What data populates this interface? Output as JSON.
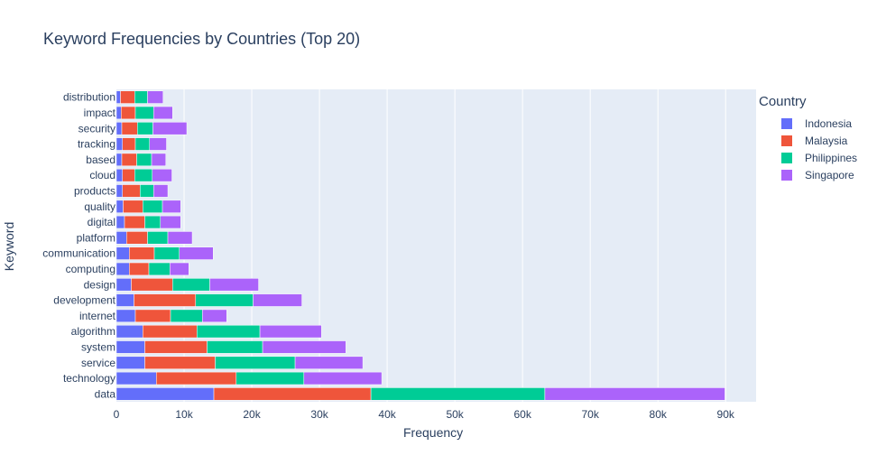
{
  "chart_data": {
    "type": "bar",
    "orientation": "horizontal",
    "barmode": "stack",
    "title": "Keyword Frequencies by Countries (Top 20)",
    "xlabel": "Frequency",
    "ylabel": "Keyword",
    "xlim": [
      0,
      94500
    ],
    "xticks": [
      0,
      10000,
      20000,
      30000,
      40000,
      50000,
      60000,
      70000,
      80000,
      90000
    ],
    "xtick_labels": [
      "0",
      "10k",
      "20k",
      "30k",
      "40k",
      "50k",
      "60k",
      "70k",
      "80k",
      "90k"
    ],
    "legend_title": "Country",
    "legend_position": "right",
    "categories": [
      "data",
      "technology",
      "service",
      "system",
      "algorithm",
      "internet",
      "development",
      "design",
      "computing",
      "communication",
      "platform",
      "digital",
      "quality",
      "products",
      "cloud",
      "based",
      "tracking",
      "security",
      "impact",
      "distribution"
    ],
    "series": [
      {
        "name": "Indonesia",
        "color": "#636efa",
        "values": [
          14400,
          5900,
          4200,
          4200,
          3900,
          2800,
          2600,
          2200,
          1900,
          1900,
          1500,
          1200,
          1000,
          900,
          900,
          800,
          900,
          800,
          700,
          600
        ]
      },
      {
        "name": "Malaysia",
        "color": "#ef553b",
        "values": [
          23200,
          11800,
          10400,
          9200,
          8000,
          5200,
          9100,
          6100,
          2900,
          3700,
          3100,
          3000,
          2900,
          2600,
          1800,
          2200,
          1900,
          2300,
          2100,
          2100
        ]
      },
      {
        "name": "Philippines",
        "color": "#00cc96",
        "values": [
          25700,
          10000,
          11800,
          8200,
          9300,
          4700,
          8500,
          5500,
          3100,
          3700,
          3000,
          2300,
          2900,
          2000,
          2600,
          2200,
          2100,
          2300,
          2700,
          1900
        ]
      },
      {
        "name": "Singapore",
        "color": "#ab63fa",
        "values": [
          26600,
          11500,
          10000,
          12300,
          9100,
          3600,
          7200,
          7200,
          2800,
          5000,
          3600,
          3000,
          2700,
          2100,
          2900,
          2100,
          2500,
          5000,
          2800,
          2300
        ]
      }
    ]
  }
}
